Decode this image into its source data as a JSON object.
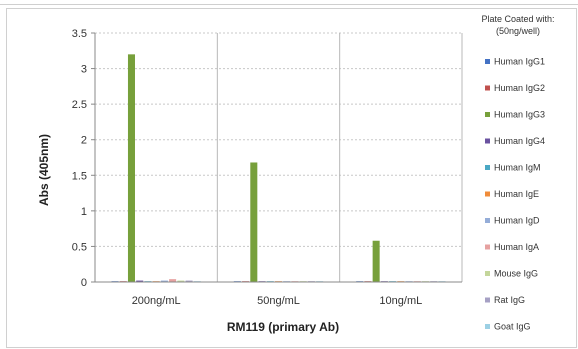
{
  "chart_data": {
    "type": "bar",
    "title": "",
    "xlabel": "RM119 (primary Ab)",
    "ylabel": "Abs (405nm)",
    "ylim": [
      0,
      3.5
    ],
    "yticks": [
      "0",
      "0.5",
      "1",
      "1.5",
      "2",
      "2.5",
      "3",
      "3.5"
    ],
    "ytick_values": [
      0,
      0.5,
      1,
      1.5,
      2,
      2.5,
      3,
      3.5
    ],
    "grid": true,
    "legend_position": "right",
    "legend_title": [
      "Plate Coated with:",
      "(50ng/well)"
    ],
    "categories": [
      "200ng/mL",
      "50ng/mL",
      "10ng/mL"
    ],
    "series": [
      {
        "name": "Human IgG1",
        "color": "#4472c4",
        "values": [
          0.01,
          0.01,
          0.01
        ]
      },
      {
        "name": "Human IgG2",
        "color": "#c0504d",
        "values": [
          0.01,
          0.01,
          0.01
        ]
      },
      {
        "name": "Human IgG3",
        "color": "#77a03b",
        "values": [
          3.2,
          1.68,
          0.58
        ]
      },
      {
        "name": "Human IgG4",
        "color": "#6a52a0",
        "values": [
          0.02,
          0.01,
          0.01
        ]
      },
      {
        "name": "Human IgM",
        "color": "#4aa8c4",
        "values": [
          0.01,
          0.01,
          0.01
        ]
      },
      {
        "name": "Human IgE",
        "color": "#f08c3a",
        "values": [
          0.01,
          0.01,
          0.01
        ]
      },
      {
        "name": "Human IgD",
        "color": "#95add8",
        "values": [
          0.02,
          0.01,
          0.01
        ]
      },
      {
        "name": "Human IgA",
        "color": "#e6a1a0",
        "values": [
          0.04,
          0.01,
          0.01
        ]
      },
      {
        "name": "Mouse IgG",
        "color": "#c4d69b",
        "values": [
          0.02,
          0.01,
          0.01
        ]
      },
      {
        "name": "Rat IgG",
        "color": "#a6a0c4",
        "values": [
          0.02,
          0.01,
          0.01
        ]
      },
      {
        "name": "Goat IgG",
        "color": "#9cd0e4",
        "values": [
          0.01,
          0.01,
          0.01
        ]
      }
    ]
  }
}
